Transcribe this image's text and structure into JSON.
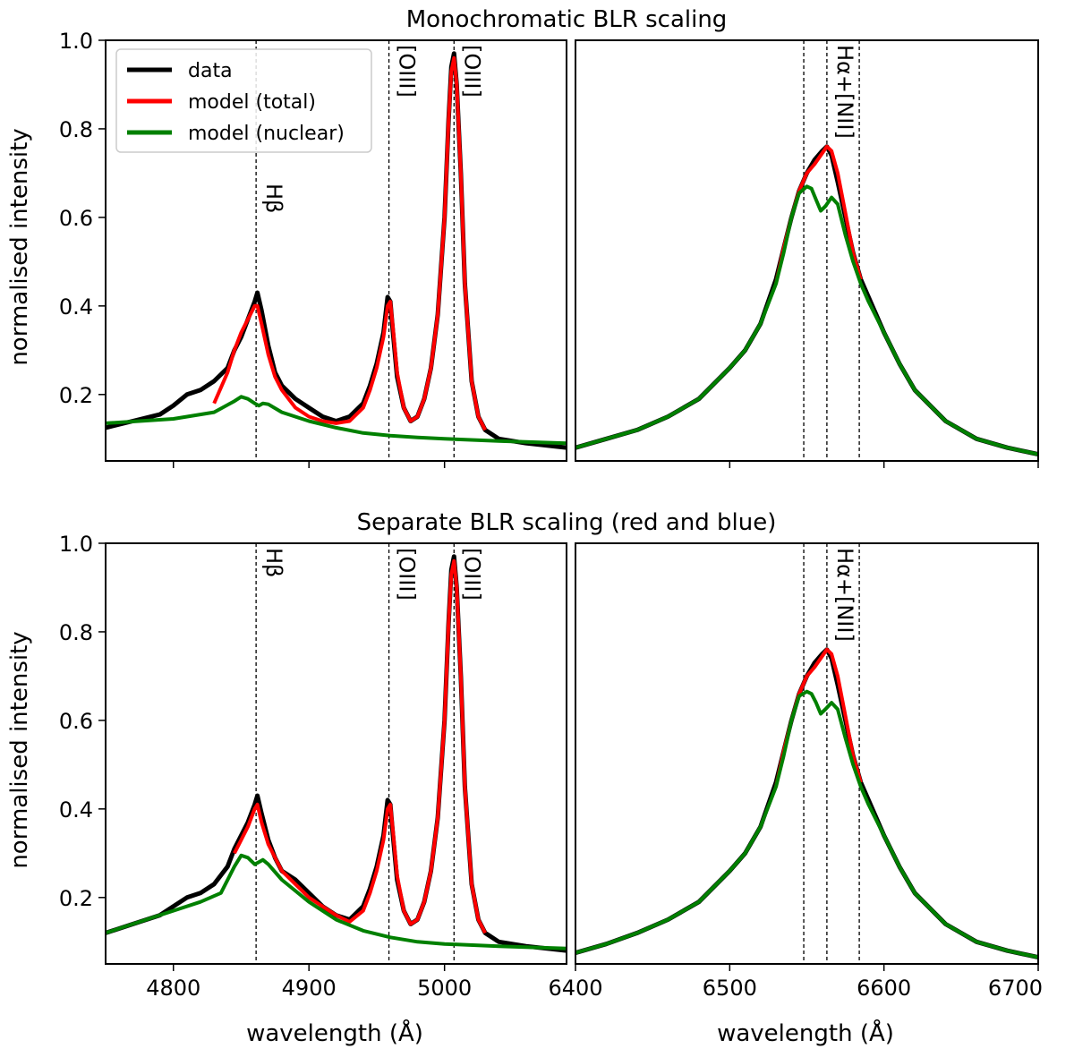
{
  "figure": {
    "titles": [
      "Monochromatic BLR scaling",
      "Separate BLR scaling (red and blue)"
    ],
    "xlabel": "wavelength (Å)",
    "ylabel": "normalised intensity"
  },
  "legend": {
    "placement": "top-left of top-left panel",
    "entries": [
      {
        "label": "data",
        "color": "#000000"
      },
      {
        "label": "model (total)",
        "color": "#ff0000"
      },
      {
        "label": "model (nuclear)",
        "color": "#008000"
      }
    ]
  },
  "chart_data": [
    {
      "type": "line",
      "panel": "top-left",
      "title": "Monochromatic BLR scaling",
      "xlabel": "",
      "ylabel": "normalised intensity",
      "xlim": [
        4750,
        5090
      ],
      "ylim": [
        0.05,
        1.0
      ],
      "xticks": [
        4800,
        4900,
        5000
      ],
      "show_xtick_labels": false,
      "yticks": [
        0.2,
        0.4,
        0.6,
        0.8,
        1.0
      ],
      "ytick_labels": [
        "0.2",
        "0.4",
        "0.6",
        "0.8",
        "1.0"
      ],
      "line_markers": [
        {
          "x": 4861,
          "label": "Hβ"
        },
        {
          "x": 4959,
          "label": "[OIII]"
        },
        {
          "x": 5007,
          "label": "[OIII]"
        }
      ],
      "series": [
        {
          "name": "data",
          "color": "#000000",
          "x": [
            4750,
            4770,
            4790,
            4800,
            4810,
            4820,
            4830,
            4840,
            4845,
            4850,
            4855,
            4860,
            4862,
            4865,
            4870,
            4875,
            4880,
            4890,
            4900,
            4910,
            4920,
            4930,
            4940,
            4945,
            4950,
            4955,
            4958,
            4960,
            4962,
            4965,
            4970,
            4975,
            4980,
            4985,
            4990,
            4995,
            5000,
            5003,
            5005,
            5007,
            5009,
            5012,
            5015,
            5020,
            5025,
            5030,
            5040,
            5060,
            5090
          ],
          "y": [
            0.125,
            0.14,
            0.155,
            0.175,
            0.2,
            0.21,
            0.23,
            0.26,
            0.3,
            0.33,
            0.37,
            0.41,
            0.43,
            0.39,
            0.31,
            0.25,
            0.22,
            0.19,
            0.17,
            0.15,
            0.14,
            0.15,
            0.18,
            0.22,
            0.27,
            0.34,
            0.42,
            0.41,
            0.34,
            0.24,
            0.17,
            0.14,
            0.15,
            0.19,
            0.26,
            0.38,
            0.6,
            0.82,
            0.94,
            0.97,
            0.9,
            0.7,
            0.45,
            0.23,
            0.15,
            0.12,
            0.1,
            0.09,
            0.08
          ]
        },
        {
          "name": "model (total)",
          "color": "#ff0000",
          "x": [
            4830,
            4840,
            4845,
            4850,
            4855,
            4860,
            4862,
            4865,
            4870,
            4875,
            4880,
            4890,
            4900,
            4910,
            4920,
            4930,
            4940,
            4945,
            4950,
            4955,
            4958,
            4960,
            4962,
            4965,
            4970,
            4975,
            4980,
            4985,
            4990,
            4995,
            5000,
            5003,
            5005,
            5007,
            5009,
            5012,
            5015,
            5020,
            5025,
            5030
          ],
          "y": [
            0.18,
            0.25,
            0.3,
            0.34,
            0.37,
            0.4,
            0.4,
            0.36,
            0.29,
            0.24,
            0.21,
            0.17,
            0.15,
            0.14,
            0.135,
            0.14,
            0.17,
            0.21,
            0.26,
            0.33,
            0.4,
            0.41,
            0.35,
            0.25,
            0.17,
            0.14,
            0.15,
            0.19,
            0.26,
            0.38,
            0.6,
            0.82,
            0.93,
            0.96,
            0.9,
            0.7,
            0.45,
            0.23,
            0.15,
            0.12
          ]
        },
        {
          "name": "model (nuclear)",
          "color": "#008000",
          "x": [
            4750,
            4800,
            4830,
            4845,
            4850,
            4855,
            4860,
            4863,
            4866,
            4870,
            4880,
            4900,
            4920,
            4940,
            4960,
            4980,
            5000,
            5040,
            5090
          ],
          "y": [
            0.135,
            0.145,
            0.16,
            0.185,
            0.195,
            0.19,
            0.18,
            0.175,
            0.18,
            0.178,
            0.16,
            0.14,
            0.125,
            0.113,
            0.107,
            0.103,
            0.1,
            0.095,
            0.09
          ]
        }
      ]
    },
    {
      "type": "line",
      "panel": "top-right",
      "title": "",
      "xlabel": "",
      "ylabel": "",
      "xlim": [
        6400,
        6700
      ],
      "ylim": [
        0.05,
        1.0
      ],
      "xticks": [
        6500,
        6600,
        6700
      ],
      "show_xtick_labels": false,
      "yticks": [],
      "ytick_labels": [],
      "line_markers": [
        {
          "x": 6548,
          "label": ""
        },
        {
          "x": 6563,
          "label": "Hα+[NII]"
        },
        {
          "x": 6584,
          "label": ""
        }
      ],
      "series": [
        {
          "name": "data",
          "color": "#000000",
          "x": [
            6400,
            6420,
            6440,
            6460,
            6480,
            6500,
            6510,
            6520,
            6530,
            6535,
            6540,
            6545,
            6550,
            6555,
            6560,
            6563,
            6566,
            6570,
            6575,
            6580,
            6585,
            6590,
            6600,
            6610,
            6620,
            6640,
            6660,
            6680,
            6700
          ],
          "y": [
            0.08,
            0.1,
            0.12,
            0.15,
            0.19,
            0.26,
            0.3,
            0.36,
            0.46,
            0.53,
            0.6,
            0.66,
            0.7,
            0.73,
            0.75,
            0.76,
            0.74,
            0.68,
            0.6,
            0.52,
            0.46,
            0.42,
            0.34,
            0.27,
            0.21,
            0.14,
            0.1,
            0.08,
            0.065
          ]
        },
        {
          "name": "model (total)",
          "color": "#ff0000",
          "x": [
            6530,
            6535,
            6540,
            6545,
            6550,
            6555,
            6560,
            6563,
            6566,
            6570,
            6575,
            6580,
            6585
          ],
          "y": [
            0.45,
            0.53,
            0.6,
            0.66,
            0.7,
            0.72,
            0.745,
            0.76,
            0.75,
            0.7,
            0.61,
            0.52,
            0.46
          ]
        },
        {
          "name": "model (nuclear)",
          "color": "#008000",
          "x": [
            6400,
            6420,
            6440,
            6460,
            6480,
            6500,
            6510,
            6520,
            6530,
            6535,
            6540,
            6545,
            6550,
            6553,
            6556,
            6559,
            6562,
            6566,
            6570,
            6575,
            6580,
            6585,
            6590,
            6600,
            6610,
            6620,
            6640,
            6660,
            6680,
            6700
          ],
          "y": [
            0.08,
            0.1,
            0.12,
            0.15,
            0.19,
            0.26,
            0.3,
            0.36,
            0.45,
            0.52,
            0.6,
            0.655,
            0.67,
            0.665,
            0.64,
            0.615,
            0.625,
            0.645,
            0.63,
            0.56,
            0.5,
            0.45,
            0.41,
            0.34,
            0.27,
            0.21,
            0.14,
            0.1,
            0.08,
            0.065
          ]
        }
      ]
    },
    {
      "type": "line",
      "panel": "bottom-left",
      "title": "Separate BLR scaling (red and blue)",
      "xlabel": "wavelength (Å)",
      "ylabel": "normalised intensity",
      "xlim": [
        4750,
        5090
      ],
      "ylim": [
        0.05,
        1.0
      ],
      "xticks": [
        4800,
        4900,
        5000
      ],
      "show_xtick_labels": true,
      "xtick_labels": [
        "4800",
        "4900",
        "5000"
      ],
      "yticks": [
        0.2,
        0.4,
        0.6,
        0.8,
        1.0
      ],
      "ytick_labels": [
        "0.2",
        "0.4",
        "0.6",
        "0.8",
        "1.0"
      ],
      "line_markers": [
        {
          "x": 4861,
          "label": "Hβ"
        },
        {
          "x": 4959,
          "label": "[OIII]"
        },
        {
          "x": 5007,
          "label": "[OIII]"
        }
      ],
      "series": [
        {
          "name": "data",
          "color": "#000000",
          "x": [
            4750,
            4770,
            4790,
            4800,
            4810,
            4820,
            4830,
            4840,
            4845,
            4850,
            4855,
            4860,
            4862,
            4865,
            4870,
            4875,
            4880,
            4890,
            4900,
            4910,
            4920,
            4930,
            4940,
            4945,
            4950,
            4955,
            4958,
            4960,
            4962,
            4965,
            4970,
            4975,
            4980,
            4985,
            4990,
            4995,
            5000,
            5003,
            5005,
            5007,
            5009,
            5012,
            5015,
            5020,
            5025,
            5030,
            5040,
            5060,
            5090
          ],
          "y": [
            0.12,
            0.14,
            0.16,
            0.18,
            0.2,
            0.21,
            0.23,
            0.27,
            0.31,
            0.34,
            0.37,
            0.41,
            0.43,
            0.39,
            0.33,
            0.29,
            0.26,
            0.24,
            0.21,
            0.18,
            0.16,
            0.15,
            0.18,
            0.22,
            0.27,
            0.34,
            0.42,
            0.41,
            0.34,
            0.24,
            0.17,
            0.14,
            0.15,
            0.19,
            0.26,
            0.38,
            0.6,
            0.82,
            0.94,
            0.97,
            0.9,
            0.7,
            0.45,
            0.23,
            0.15,
            0.12,
            0.1,
            0.09,
            0.08
          ]
        },
        {
          "name": "model (total)",
          "color": "#ff0000",
          "x": [
            4845,
            4850,
            4855,
            4860,
            4862,
            4865,
            4870,
            4880,
            4900,
            4920,
            4930,
            4940,
            4945,
            4950,
            4955,
            4958,
            4960,
            4962,
            4965,
            4970,
            4975,
            4980,
            4985,
            4990,
            4995,
            5000,
            5003,
            5005,
            5007,
            5009,
            5012,
            5015,
            5020,
            5025,
            5030
          ],
          "y": [
            0.3,
            0.33,
            0.36,
            0.4,
            0.41,
            0.37,
            0.32,
            0.26,
            0.2,
            0.16,
            0.145,
            0.17,
            0.21,
            0.26,
            0.33,
            0.4,
            0.41,
            0.35,
            0.25,
            0.17,
            0.14,
            0.15,
            0.19,
            0.26,
            0.38,
            0.6,
            0.82,
            0.93,
            0.96,
            0.9,
            0.7,
            0.45,
            0.23,
            0.15,
            0.12
          ]
        },
        {
          "name": "model (nuclear)",
          "color": "#008000",
          "x": [
            4750,
            4780,
            4800,
            4820,
            4835,
            4845,
            4850,
            4855,
            4860,
            4863,
            4866,
            4870,
            4880,
            4900,
            4920,
            4940,
            4960,
            4980,
            5000,
            5040,
            5090
          ],
          "y": [
            0.12,
            0.15,
            0.17,
            0.19,
            0.21,
            0.27,
            0.295,
            0.29,
            0.275,
            0.28,
            0.285,
            0.275,
            0.24,
            0.19,
            0.15,
            0.125,
            0.11,
            0.1,
            0.095,
            0.09,
            0.085
          ]
        }
      ]
    },
    {
      "type": "line",
      "panel": "bottom-right",
      "title": "",
      "xlabel": "wavelength (Å)",
      "ylabel": "",
      "xlim": [
        6400,
        6700
      ],
      "ylim": [
        0.05,
        1.0
      ],
      "xticks": [
        6400,
        6500,
        6600,
        6700
      ],
      "show_xtick_labels": true,
      "xtick_labels": [
        "6400",
        "6500",
        "6600",
        "6700"
      ],
      "yticks": [],
      "ytick_labels": [],
      "line_markers": [
        {
          "x": 6548,
          "label": ""
        },
        {
          "x": 6563,
          "label": "Hα+[NII]"
        },
        {
          "x": 6584,
          "label": ""
        }
      ],
      "series": [
        {
          "name": "data",
          "color": "#000000",
          "x": [
            6400,
            6420,
            6440,
            6460,
            6480,
            6500,
            6510,
            6520,
            6530,
            6535,
            6540,
            6545,
            6550,
            6555,
            6560,
            6563,
            6566,
            6570,
            6575,
            6580,
            6585,
            6590,
            6600,
            6610,
            6620,
            6640,
            6660,
            6680,
            6700
          ],
          "y": [
            0.075,
            0.095,
            0.12,
            0.15,
            0.19,
            0.26,
            0.3,
            0.36,
            0.46,
            0.53,
            0.6,
            0.66,
            0.7,
            0.73,
            0.75,
            0.76,
            0.74,
            0.68,
            0.6,
            0.52,
            0.46,
            0.42,
            0.34,
            0.27,
            0.21,
            0.14,
            0.1,
            0.08,
            0.065
          ]
        },
        {
          "name": "model (total)",
          "color": "#ff0000",
          "x": [
            6530,
            6535,
            6540,
            6545,
            6550,
            6555,
            6560,
            6563,
            6566,
            6570,
            6575,
            6580,
            6585
          ],
          "y": [
            0.45,
            0.53,
            0.6,
            0.66,
            0.7,
            0.72,
            0.745,
            0.76,
            0.75,
            0.7,
            0.61,
            0.52,
            0.46
          ]
        },
        {
          "name": "model (nuclear)",
          "color": "#008000",
          "x": [
            6400,
            6420,
            6440,
            6460,
            6480,
            6500,
            6510,
            6520,
            6530,
            6535,
            6540,
            6545,
            6550,
            6553,
            6556,
            6559,
            6562,
            6566,
            6570,
            6575,
            6580,
            6585,
            6590,
            6600,
            6610,
            6620,
            6640,
            6660,
            6680,
            6700
          ],
          "y": [
            0.075,
            0.095,
            0.12,
            0.15,
            0.19,
            0.26,
            0.3,
            0.36,
            0.45,
            0.52,
            0.6,
            0.655,
            0.665,
            0.66,
            0.64,
            0.615,
            0.625,
            0.64,
            0.625,
            0.56,
            0.5,
            0.45,
            0.41,
            0.34,
            0.27,
            0.21,
            0.14,
            0.1,
            0.08,
            0.065
          ]
        }
      ]
    }
  ]
}
